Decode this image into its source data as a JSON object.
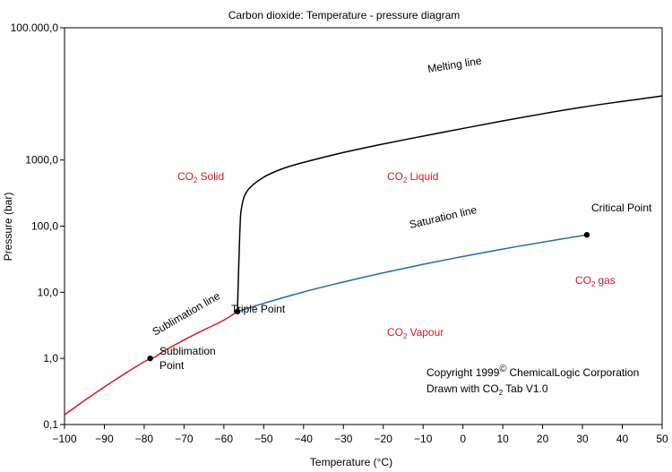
{
  "chart_data": {
    "type": "line",
    "title": "Carbon dioxide: Temperature - pressure diagram",
    "xlabel": "Temperature (°C)",
    "ylabel": "Pressure (bar)",
    "xlim": [
      -100,
      50
    ],
    "ylim": [
      0.1,
      100000
    ],
    "yscale": "log",
    "grid": false,
    "x_ticks": [
      -100,
      -90,
      -80,
      -70,
      -60,
      -50,
      -40,
      -30,
      -20,
      -10,
      0,
      10,
      20,
      30,
      40,
      50
    ],
    "x_tick_labels": [
      "−100",
      "−90",
      "−80",
      "−70",
      "−60",
      "−50",
      "−40",
      "−30",
      "−20",
      "−10",
      "0",
      "10",
      "20",
      "30",
      "40",
      "50"
    ],
    "y_ticks": [
      0.1,
      1,
      10,
      100,
      1000,
      100000
    ],
    "y_tick_labels": [
      "0,1",
      "1,0",
      "10,0",
      "100,0",
      "1000,0",
      "100.000,0"
    ],
    "series": [
      {
        "name": "Sublimation line",
        "color": "#d71920",
        "points": [
          [
            -100,
            0.14
          ],
          [
            -95,
            0.23
          ],
          [
            -90,
            0.37
          ],
          [
            -85,
            0.58
          ],
          [
            -80,
            0.89
          ],
          [
            -77.3,
            1.05
          ],
          [
            -75,
            1.3
          ],
          [
            -70,
            1.9
          ],
          [
            -65,
            2.7
          ],
          [
            -60,
            3.8
          ],
          [
            -56.6,
            5.1
          ]
        ]
      },
      {
        "name": "Saturation line",
        "color": "#1f6db0",
        "points": [
          [
            -56.6,
            5.1
          ],
          [
            -50,
            6.8
          ],
          [
            -40,
            10.1
          ],
          [
            -30,
            14.3
          ],
          [
            -20,
            19.7
          ],
          [
            -10,
            26.5
          ],
          [
            0,
            34.8
          ],
          [
            10,
            45
          ],
          [
            20,
            57.3
          ],
          [
            31.1,
            73.8
          ]
        ]
      },
      {
        "name": "Melting line",
        "color": "#000000",
        "points": [
          [
            -56.6,
            5.1
          ],
          [
            -56.0,
            80
          ],
          [
            -55.5,
            200
          ],
          [
            -54,
            350
          ],
          [
            -50,
            550
          ],
          [
            -45,
            750
          ],
          [
            -40,
            920
          ],
          [
            -30,
            1300
          ],
          [
            -20,
            1750
          ],
          [
            -10,
            2300
          ],
          [
            0,
            3000
          ],
          [
            10,
            3900
          ],
          [
            20,
            5000
          ],
          [
            30,
            6300
          ],
          [
            40,
            7700
          ],
          [
            50,
            9300
          ]
        ]
      }
    ],
    "points": [
      {
        "name": "Triple Point",
        "x": -56.6,
        "y": 5.1
      },
      {
        "name": "Critical Point",
        "x": 31.1,
        "y": 73.8
      },
      {
        "name": "Sublimation Point",
        "x": -78.5,
        "y": 1.0
      }
    ],
    "line_labels": {
      "melting": "Melting line",
      "saturation": "Saturation line",
      "sublimation": "Sublimation line"
    },
    "point_labels": {
      "triple": "Triple Point",
      "critical": "Critical Point",
      "sublimation_1": "Sublimation",
      "sublimation_2": "Point"
    },
    "regions": {
      "co2": "CO",
      "sub2": "2",
      "solid": "Solid",
      "liquid": "Liquid",
      "gas": "gas",
      "vapour": "Vapour"
    },
    "copyright": {
      "line1": "Copyright 1999",
      "symbol": "©",
      "company": "ChemicalLogic Corporation",
      "line2a": "Drawn with CO",
      "line2b": "Tab V1.0"
    },
    "colors": {
      "sublimation": "#d71920",
      "saturation": "#1f6db0",
      "melting": "#000000",
      "region_text": "#d71920"
    }
  }
}
